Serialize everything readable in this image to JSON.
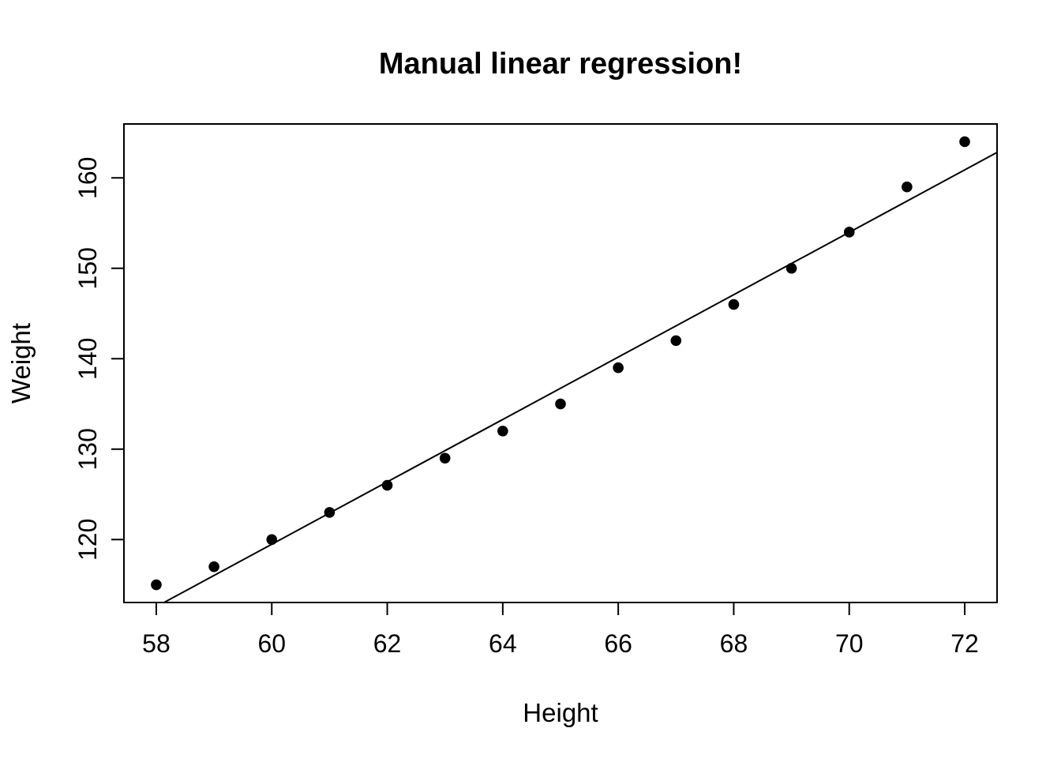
{
  "chart_data": {
    "type": "scatter",
    "title": "Manual linear regression!",
    "xlabel": "Height",
    "ylabel": "Weight",
    "x": [
      58,
      59,
      60,
      61,
      62,
      63,
      64,
      65,
      66,
      67,
      68,
      69,
      70,
      71,
      72
    ],
    "y": [
      115,
      117,
      120,
      123,
      126,
      129,
      132,
      135,
      139,
      142,
      146,
      150,
      154,
      159,
      164
    ],
    "x_ticks": [
      58,
      60,
      62,
      64,
      66,
      68,
      70,
      72
    ],
    "y_ticks": [
      120,
      130,
      140,
      150,
      160
    ],
    "xlim": [
      57.44,
      72.56
    ],
    "ylim": [
      113.04,
      165.96
    ],
    "grid": false,
    "legend": "none",
    "point_color": "#000000",
    "line_color": "#000000",
    "background_color": "#ffffff",
    "regression_line": {
      "slope": 3.45,
      "intercept": -87.52
    }
  }
}
